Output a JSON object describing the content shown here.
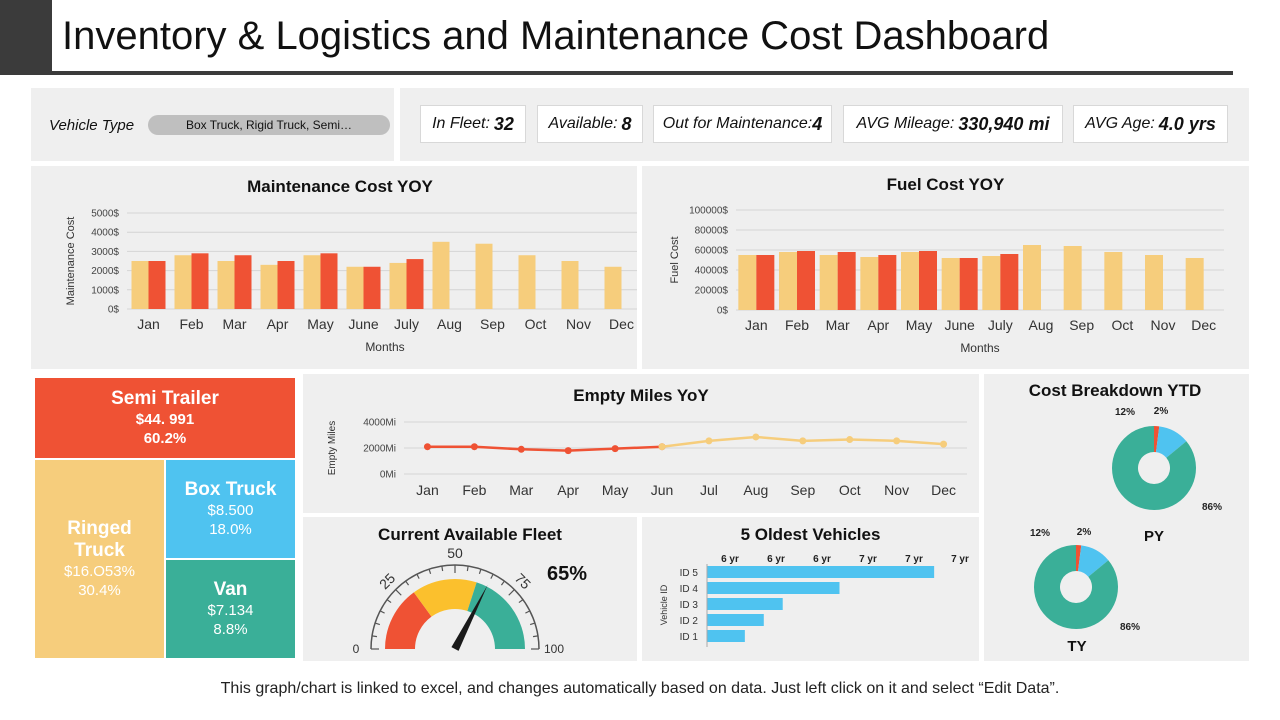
{
  "header": {
    "title": "Inventory & Logistics and Maintenance Cost Dashboard"
  },
  "filter": {
    "label": "Vehicle Type",
    "value": "Box Truck, Rigid Truck, Semi…"
  },
  "kpis": [
    {
      "label": "In Fleet:",
      "value": "32"
    },
    {
      "label": "Available:",
      "value": "8"
    },
    {
      "label": "Out for Maintenance:",
      "value": "4"
    },
    {
      "label": "AVG Mileage:",
      "value": "330,940 mi"
    },
    {
      "label": "AVG Age:",
      "value": "4.0 yrs"
    }
  ],
  "colors": {
    "previous": "#f6cd7c",
    "current": "#ef5234",
    "green": "#3aaf98",
    "blue": "#4fc3f0",
    "red": "#ef5234",
    "tan": "#f6cd7c",
    "yellow": "#fbc02d"
  },
  "maintenance": {
    "title": "Maintenance Cost YOY",
    "chart_data": {
      "type": "bar",
      "categories": [
        "Jan",
        "Feb",
        "Mar",
        "Apr",
        "May",
        "June",
        "July",
        "Aug",
        "Sep",
        "Oct",
        "Nov",
        "Dec"
      ],
      "series": [
        {
          "values": [
            2500,
            2800,
            2500,
            2300,
            2800,
            2200,
            2400,
            3500,
            3400,
            2800,
            2500,
            2200
          ]
        },
        {
          "values": [
            2500,
            2900,
            2800,
            2500,
            2900,
            2200,
            2600,
            null,
            null,
            null,
            null,
            null
          ]
        }
      ],
      "ylabel": "Maintenance Cost",
      "xlabel": "Months",
      "ylim": [
        0,
        5000
      ],
      "yticks": [
        "0$",
        "1000$",
        "2000$",
        "3000$",
        "4000$",
        "5000$"
      ],
      "grid": true
    }
  },
  "fuel": {
    "title": "Fuel Cost YOY",
    "chart_data": {
      "type": "bar",
      "categories": [
        "Jan",
        "Feb",
        "Mar",
        "Apr",
        "May",
        "June",
        "July",
        "Aug",
        "Sep",
        "Oct",
        "Nov",
        "Dec"
      ],
      "series": [
        {
          "values": [
            55000,
            58000,
            55000,
            53000,
            58000,
            52000,
            54000,
            65000,
            64000,
            58000,
            55000,
            52000
          ]
        },
        {
          "values": [
            55000,
            59000,
            58000,
            55000,
            59000,
            52000,
            56000,
            null,
            null,
            null,
            null,
            null
          ]
        }
      ],
      "ylabel": "Fuel Cost",
      "xlabel": "Months",
      "ylim": [
        0,
        100000
      ],
      "yticks": [
        "0$",
        "20000$",
        "40000$",
        "60000$",
        "80000$",
        "100000$"
      ],
      "grid": true
    }
  },
  "treemap": {
    "items": [
      {
        "name": "Semi Trailer",
        "value": "$44. 991",
        "pct": "60.2%"
      },
      {
        "name": "Ringed Truck",
        "value": "$16.O53%",
        "pct": "30.4%"
      },
      {
        "name": "Box Truck",
        "value": "$8.500",
        "pct": "18.0%"
      },
      {
        "name": "Van",
        "value": "$7.134",
        "pct": "8.8%"
      }
    ]
  },
  "empty_miles": {
    "title": "Empty Miles YoY",
    "chart_data": {
      "type": "line",
      "categories": [
        "Jan",
        "Feb",
        "Mar",
        "Apr",
        "May",
        "Jun",
        "Jul",
        "Aug",
        "Sep",
        "Oct",
        "Nov",
        "Dec"
      ],
      "series": [
        {
          "values": [
            2100,
            2100,
            1900,
            1800,
            1950,
            2100,
            null,
            null,
            null,
            null,
            null,
            null
          ]
        },
        {
          "values": [
            null,
            null,
            null,
            null,
            null,
            2100,
            2550,
            2850,
            2550,
            2650,
            2550,
            2300
          ]
        }
      ],
      "ylabel": "Empty Miles",
      "ylim": [
        0,
        4000
      ],
      "yticks": [
        "0Mi",
        "2000Mi",
        "4000Mi"
      ],
      "grid": true
    }
  },
  "fleet_gauge": {
    "title": "Current Available Fleet",
    "value_text": "65%",
    "value": 65,
    "min_label": "0",
    "max_label": "100",
    "tick_labels": [
      "25",
      "50",
      "75"
    ]
  },
  "oldest": {
    "title": "5 Oldest Vehicles",
    "chart_data": {
      "type": "bar",
      "categories": [
        "ID 5",
        "ID 4",
        "ID 3",
        "ID 2",
        "ID 1"
      ],
      "values": [
        7.0,
        6.5,
        6.2,
        6.1,
        6.0
      ],
      "ylabel": "Vehicle ID",
      "xticks": [
        "6 yr",
        "6 yr",
        "6 yr",
        "7 yr",
        "7 yr",
        "7 yr"
      ],
      "xlim": [
        5.8,
        7.2
      ]
    }
  },
  "breakdown": {
    "title": "Cost Breakdown YTD",
    "chart_data": [
      {
        "type": "pie",
        "name": "PY",
        "labels": [
          "86%",
          "12%",
          "2%"
        ],
        "values": [
          86,
          12,
          2
        ]
      },
      {
        "type": "pie",
        "name": "TY",
        "labels": [
          "86%",
          "12%",
          "2%"
        ],
        "values": [
          86,
          12,
          2
        ]
      }
    ]
  },
  "footer": {
    "text": "This graph/chart is linked to excel, and changes automatically based on data. Just left click on it and select “Edit Data”."
  }
}
